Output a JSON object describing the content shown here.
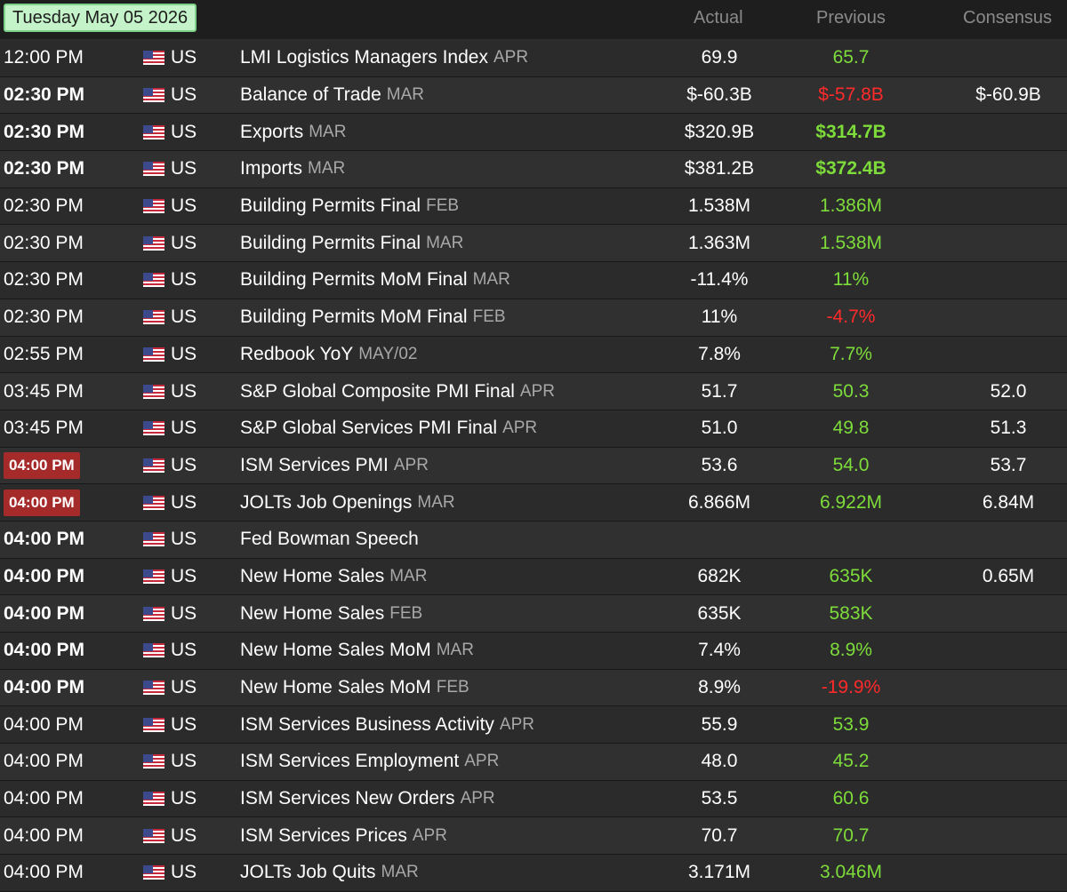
{
  "header": {
    "date": "Tuesday May 05 2026",
    "col_actual": "Actual",
    "col_previous": "Previous",
    "col_consensus": "Consensus"
  },
  "rows": [
    {
      "time": "12:00 PM",
      "time_style": "normal",
      "country": "US",
      "event": "LMI Logistics Managers Index",
      "period": "APR",
      "actual": "69.9",
      "previous": "65.7",
      "previous_dir": "up",
      "previous_bold": false,
      "consensus": ""
    },
    {
      "time": "02:30 PM",
      "time_style": "bold",
      "country": "US",
      "event": "Balance of Trade",
      "period": "MAR",
      "actual": "$-60.3B",
      "previous": "$-57.8B",
      "previous_dir": "down",
      "previous_bold": false,
      "consensus": "$-60.9B"
    },
    {
      "time": "02:30 PM",
      "time_style": "bold",
      "country": "US",
      "event": "Exports",
      "period": "MAR",
      "actual": "$320.9B",
      "previous": "$314.7B",
      "previous_dir": "up",
      "previous_bold": true,
      "consensus": ""
    },
    {
      "time": "02:30 PM",
      "time_style": "bold",
      "country": "US",
      "event": "Imports",
      "period": "MAR",
      "actual": "$381.2B",
      "previous": "$372.4B",
      "previous_dir": "up",
      "previous_bold": true,
      "consensus": ""
    },
    {
      "time": "02:30 PM",
      "time_style": "normal",
      "country": "US",
      "event": "Building Permits Final",
      "period": "FEB",
      "actual": "1.538M",
      "previous": "1.386M",
      "previous_dir": "up",
      "previous_bold": false,
      "consensus": ""
    },
    {
      "time": "02:30 PM",
      "time_style": "normal",
      "country": "US",
      "event": "Building Permits Final",
      "period": "MAR",
      "actual": "1.363M",
      "previous": "1.538M",
      "previous_dir": "up",
      "previous_bold": false,
      "consensus": ""
    },
    {
      "time": "02:30 PM",
      "time_style": "normal",
      "country": "US",
      "event": "Building Permits MoM Final",
      "period": "MAR",
      "actual": "-11.4%",
      "previous": "11%",
      "previous_dir": "up",
      "previous_bold": false,
      "consensus": ""
    },
    {
      "time": "02:30 PM",
      "time_style": "normal",
      "country": "US",
      "event": "Building Permits MoM Final",
      "period": "FEB",
      "actual": "11%",
      "previous": "-4.7%",
      "previous_dir": "down",
      "previous_bold": false,
      "consensus": ""
    },
    {
      "time": "02:55 PM",
      "time_style": "normal",
      "country": "US",
      "event": "Redbook YoY",
      "period": "MAY/02",
      "actual": "7.8%",
      "previous": "7.7%",
      "previous_dir": "up",
      "previous_bold": false,
      "consensus": ""
    },
    {
      "time": "03:45 PM",
      "time_style": "normal",
      "country": "US",
      "event": "S&P Global Composite PMI Final",
      "period": "APR",
      "actual": "51.7",
      "previous": "50.3",
      "previous_dir": "up",
      "previous_bold": false,
      "consensus": "52.0"
    },
    {
      "time": "03:45 PM",
      "time_style": "normal",
      "country": "US",
      "event": "S&P Global Services PMI Final",
      "period": "APR",
      "actual": "51.0",
      "previous": "49.8",
      "previous_dir": "up",
      "previous_bold": false,
      "consensus": "51.3"
    },
    {
      "time": "04:00 PM",
      "time_style": "highlight",
      "country": "US",
      "event": "ISM Services PMI",
      "period": "APR",
      "actual": "53.6",
      "previous": "54.0",
      "previous_dir": "up",
      "previous_bold": false,
      "consensus": "53.7"
    },
    {
      "time": "04:00 PM",
      "time_style": "highlight",
      "country": "US",
      "event": "JOLTs Job Openings",
      "period": "MAR",
      "actual": "6.866M",
      "previous": "6.922M",
      "previous_dir": "up",
      "previous_bold": false,
      "consensus": "6.84M"
    },
    {
      "time": "04:00 PM",
      "time_style": "bold",
      "country": "US",
      "event": "Fed Bowman Speech",
      "period": "",
      "actual": "",
      "previous": "",
      "previous_dir": "up",
      "previous_bold": false,
      "consensus": ""
    },
    {
      "time": "04:00 PM",
      "time_style": "bold",
      "country": "US",
      "event": "New Home Sales",
      "period": "MAR",
      "actual": "682K",
      "previous": "635K",
      "previous_dir": "up",
      "previous_bold": false,
      "consensus": "0.65M"
    },
    {
      "time": "04:00 PM",
      "time_style": "bold",
      "country": "US",
      "event": "New Home Sales",
      "period": "FEB",
      "actual": "635K",
      "previous": "583K",
      "previous_dir": "up",
      "previous_bold": false,
      "consensus": ""
    },
    {
      "time": "04:00 PM",
      "time_style": "bold",
      "country": "US",
      "event": "New Home Sales MoM",
      "period": "MAR",
      "actual": "7.4%",
      "previous": "8.9%",
      "previous_dir": "up",
      "previous_bold": false,
      "consensus": ""
    },
    {
      "time": "04:00 PM",
      "time_style": "bold",
      "country": "US",
      "event": "New Home Sales MoM",
      "period": "FEB",
      "actual": "8.9%",
      "previous": "-19.9%",
      "previous_dir": "down",
      "previous_bold": false,
      "consensus": ""
    },
    {
      "time": "04:00 PM",
      "time_style": "normal",
      "country": "US",
      "event": "ISM Services Business Activity",
      "period": "APR",
      "actual": "55.9",
      "previous": "53.9",
      "previous_dir": "up",
      "previous_bold": false,
      "consensus": ""
    },
    {
      "time": "04:00 PM",
      "time_style": "normal",
      "country": "US",
      "event": "ISM Services Employment",
      "period": "APR",
      "actual": "48.0",
      "previous": "45.2",
      "previous_dir": "up",
      "previous_bold": false,
      "consensus": ""
    },
    {
      "time": "04:00 PM",
      "time_style": "normal",
      "country": "US",
      "event": "ISM Services New Orders",
      "period": "APR",
      "actual": "53.5",
      "previous": "60.6",
      "previous_dir": "up",
      "previous_bold": false,
      "consensus": ""
    },
    {
      "time": "04:00 PM",
      "time_style": "normal",
      "country": "US",
      "event": "ISM Services Prices",
      "period": "APR",
      "actual": "70.7",
      "previous": "70.7",
      "previous_dir": "up",
      "previous_bold": false,
      "consensus": ""
    },
    {
      "time": "04:00 PM",
      "time_style": "normal",
      "country": "US",
      "event": "JOLTs Job Quits",
      "period": "MAR",
      "actual": "3.171M",
      "previous": "3.046M",
      "previous_dir": "up",
      "previous_bold": false,
      "consensus": ""
    }
  ],
  "colors": {
    "background": "#1e1e1e",
    "previous_up": "#7ddc3a",
    "previous_down": "#ff2a2a",
    "highlight_time": "#a52a2a",
    "date_badge": "#c4f2c9"
  },
  "icons": {
    "flag": "us-flag-icon"
  }
}
